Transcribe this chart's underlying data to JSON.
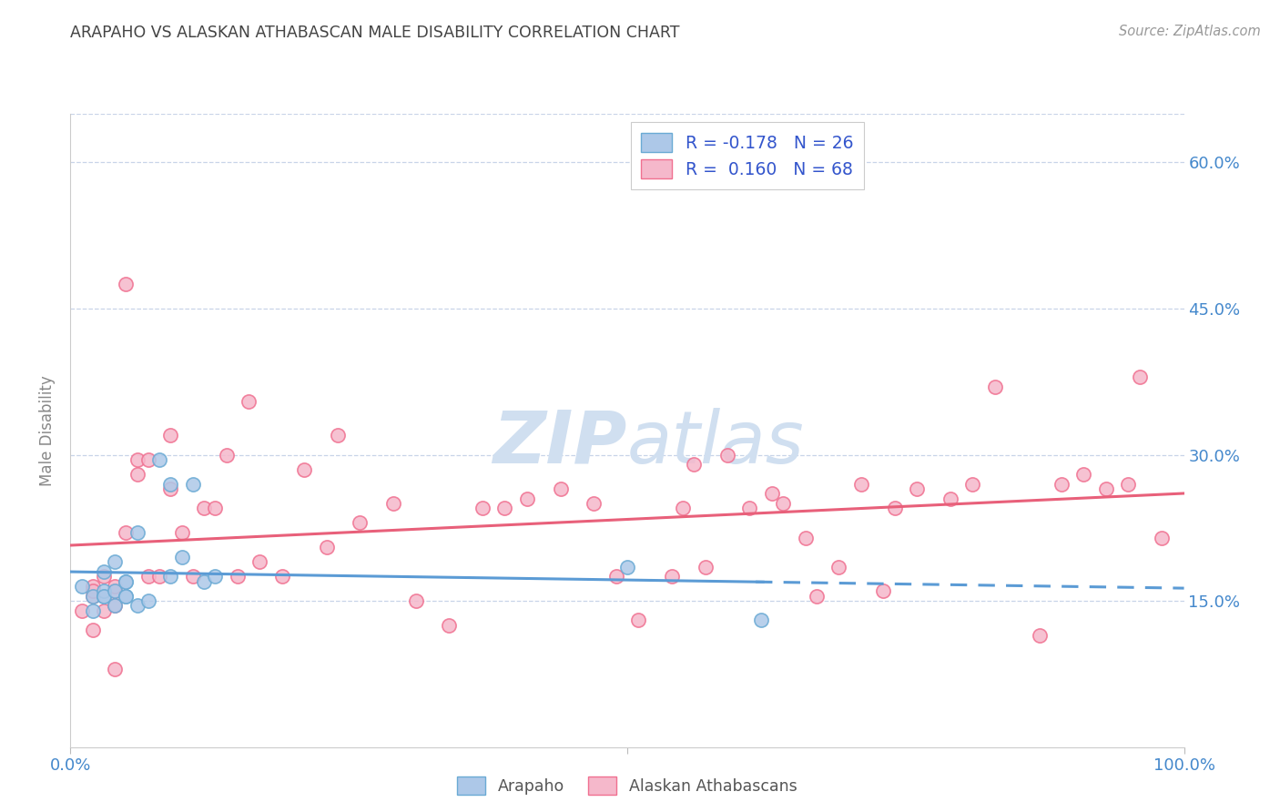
{
  "title": "ARAPAHO VS ALASKAN ATHABASCAN MALE DISABILITY CORRELATION CHART",
  "source_text": "Source: ZipAtlas.com",
  "ylabel": "Male Disability",
  "right_yticks": [
    "60.0%",
    "45.0%",
    "30.0%",
    "15.0%"
  ],
  "right_ytick_vals": [
    0.6,
    0.45,
    0.3,
    0.15
  ],
  "arapaho_color": "#adc8e8",
  "athabascan_color": "#f5b8cb",
  "arapaho_edge_color": "#6aaad4",
  "athabascan_edge_color": "#f07090",
  "arapaho_line_color": "#5b9bd5",
  "athabascan_line_color": "#e8607a",
  "background_color": "#ffffff",
  "grid_color": "#c8d4e8",
  "watermark_color": "#d0dff0",
  "legend_text_color": "#3355cc",
  "xtick_color": "#4488cc",
  "ytick_color": "#4488cc",
  "title_color": "#444444",
  "ylabel_color": "#888888",
  "source_color": "#999999",
  "xlim": [
    0.0,
    1.0
  ],
  "ylim": [
    0.0,
    0.65
  ],
  "arapaho_scatter": [
    [
      0.01,
      0.165
    ],
    [
      0.02,
      0.155
    ],
    [
      0.02,
      0.14
    ],
    [
      0.03,
      0.18
    ],
    [
      0.03,
      0.155
    ],
    [
      0.03,
      0.16
    ],
    [
      0.03,
      0.155
    ],
    [
      0.04,
      0.19
    ],
    [
      0.04,
      0.145
    ],
    [
      0.04,
      0.16
    ],
    [
      0.05,
      0.155
    ],
    [
      0.05,
      0.17
    ],
    [
      0.05,
      0.17
    ],
    [
      0.05,
      0.155
    ],
    [
      0.06,
      0.145
    ],
    [
      0.06,
      0.22
    ],
    [
      0.07,
      0.15
    ],
    [
      0.08,
      0.295
    ],
    [
      0.09,
      0.27
    ],
    [
      0.09,
      0.175
    ],
    [
      0.1,
      0.195
    ],
    [
      0.11,
      0.27
    ],
    [
      0.12,
      0.17
    ],
    [
      0.13,
      0.175
    ],
    [
      0.5,
      0.185
    ],
    [
      0.62,
      0.13
    ]
  ],
  "athabascan_scatter": [
    [
      0.01,
      0.14
    ],
    [
      0.02,
      0.155
    ],
    [
      0.02,
      0.165
    ],
    [
      0.02,
      0.16
    ],
    [
      0.02,
      0.12
    ],
    [
      0.03,
      0.175
    ],
    [
      0.03,
      0.14
    ],
    [
      0.04,
      0.16
    ],
    [
      0.04,
      0.08
    ],
    [
      0.04,
      0.165
    ],
    [
      0.04,
      0.145
    ],
    [
      0.05,
      0.475
    ],
    [
      0.05,
      0.22
    ],
    [
      0.06,
      0.28
    ],
    [
      0.06,
      0.295
    ],
    [
      0.07,
      0.295
    ],
    [
      0.07,
      0.175
    ],
    [
      0.08,
      0.175
    ],
    [
      0.09,
      0.265
    ],
    [
      0.09,
      0.32
    ],
    [
      0.1,
      0.22
    ],
    [
      0.11,
      0.175
    ],
    [
      0.12,
      0.245
    ],
    [
      0.13,
      0.245
    ],
    [
      0.14,
      0.3
    ],
    [
      0.15,
      0.175
    ],
    [
      0.16,
      0.355
    ],
    [
      0.17,
      0.19
    ],
    [
      0.19,
      0.175
    ],
    [
      0.21,
      0.285
    ],
    [
      0.23,
      0.205
    ],
    [
      0.24,
      0.32
    ],
    [
      0.26,
      0.23
    ],
    [
      0.29,
      0.25
    ],
    [
      0.31,
      0.15
    ],
    [
      0.34,
      0.125
    ],
    [
      0.37,
      0.245
    ],
    [
      0.39,
      0.245
    ],
    [
      0.41,
      0.255
    ],
    [
      0.44,
      0.265
    ],
    [
      0.47,
      0.25
    ],
    [
      0.49,
      0.175
    ],
    [
      0.51,
      0.13
    ],
    [
      0.54,
      0.175
    ],
    [
      0.55,
      0.245
    ],
    [
      0.56,
      0.29
    ],
    [
      0.57,
      0.185
    ],
    [
      0.59,
      0.3
    ],
    [
      0.61,
      0.245
    ],
    [
      0.63,
      0.26
    ],
    [
      0.64,
      0.25
    ],
    [
      0.66,
      0.215
    ],
    [
      0.67,
      0.155
    ],
    [
      0.69,
      0.185
    ],
    [
      0.71,
      0.27
    ],
    [
      0.73,
      0.16
    ],
    [
      0.74,
      0.245
    ],
    [
      0.76,
      0.265
    ],
    [
      0.79,
      0.255
    ],
    [
      0.81,
      0.27
    ],
    [
      0.83,
      0.37
    ],
    [
      0.87,
      0.115
    ],
    [
      0.89,
      0.27
    ],
    [
      0.91,
      0.28
    ],
    [
      0.93,
      0.265
    ],
    [
      0.95,
      0.27
    ],
    [
      0.96,
      0.38
    ],
    [
      0.98,
      0.215
    ]
  ]
}
